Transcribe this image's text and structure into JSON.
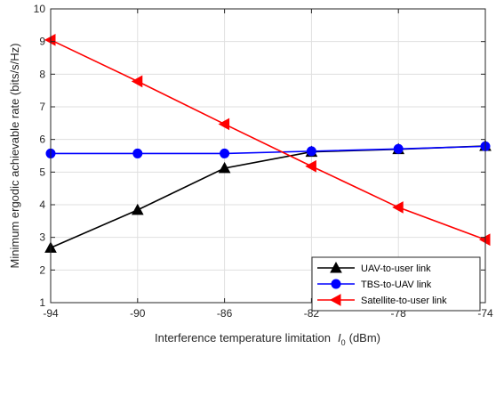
{
  "chart_data": {
    "type": "line",
    "xlabel_main": "Interference temperature limitation",
    "xlabel_symbol": "I",
    "xlabel_subscript": "0",
    "xlabel_unit": "(dBm)",
    "ylabel": "Minimum ergodic achievable rate (bits/s/Hz)",
    "xlim": [
      -94,
      -74
    ],
    "ylim": [
      1,
      10
    ],
    "x_ticks": [
      "-94",
      "-90",
      "-86",
      "-82",
      "-78",
      "-74"
    ],
    "y_ticks": [
      "1",
      "2",
      "3",
      "4",
      "5",
      "6",
      "7",
      "8",
      "9",
      "10"
    ],
    "grid": true,
    "legend_position": "bottom-right",
    "x": [
      -94,
      -90,
      -86,
      -82,
      -78,
      -74
    ],
    "series": [
      {
        "name": "UAV-to-user link",
        "color": "#000000",
        "marker": "triangle-up",
        "values": [
          2.68,
          3.84,
          5.12,
          5.62,
          5.7,
          5.8
        ]
      },
      {
        "name": "TBS-to-UAV link",
        "color": "#0000ff",
        "marker": "circle",
        "values": [
          5.57,
          5.57,
          5.57,
          5.64,
          5.71,
          5.79
        ]
      },
      {
        "name": "Satellite-to-user link",
        "color": "#ff0000",
        "marker": "triangle-left",
        "values": [
          9.05,
          7.78,
          6.47,
          5.18,
          3.92,
          2.93
        ]
      }
    ]
  }
}
